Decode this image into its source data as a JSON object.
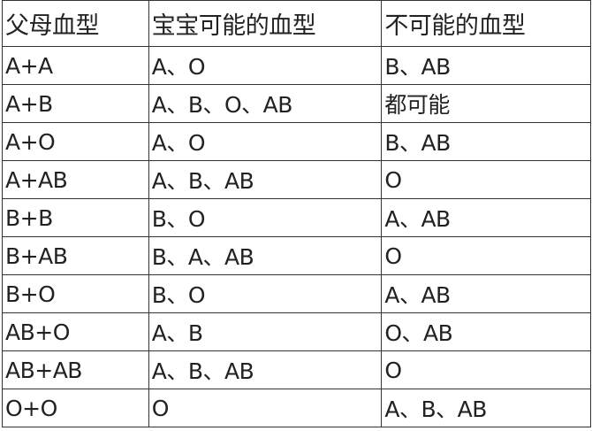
{
  "table": {
    "headers": [
      "父母血型",
      "宝宝可能的血型",
      "不可能的血型"
    ],
    "rows": [
      [
        "A+A",
        "A、O",
        "B、AB"
      ],
      [
        "A+B",
        "A、B、O、AB",
        "都可能"
      ],
      [
        "A+O",
        "A、O",
        "B、AB"
      ],
      [
        "A+AB",
        "A、B、AB",
        "O"
      ],
      [
        "B+B",
        "B、O",
        "A、AB"
      ],
      [
        "B+AB",
        "B、A、AB",
        "O"
      ],
      [
        "B+O",
        "B、O",
        "A、AB"
      ],
      [
        "AB+O",
        "A、B",
        "O、AB"
      ],
      [
        "AB+AB",
        "A、B、AB",
        "O"
      ],
      [
        "O+O",
        "O",
        "A、B、AB"
      ]
    ]
  }
}
